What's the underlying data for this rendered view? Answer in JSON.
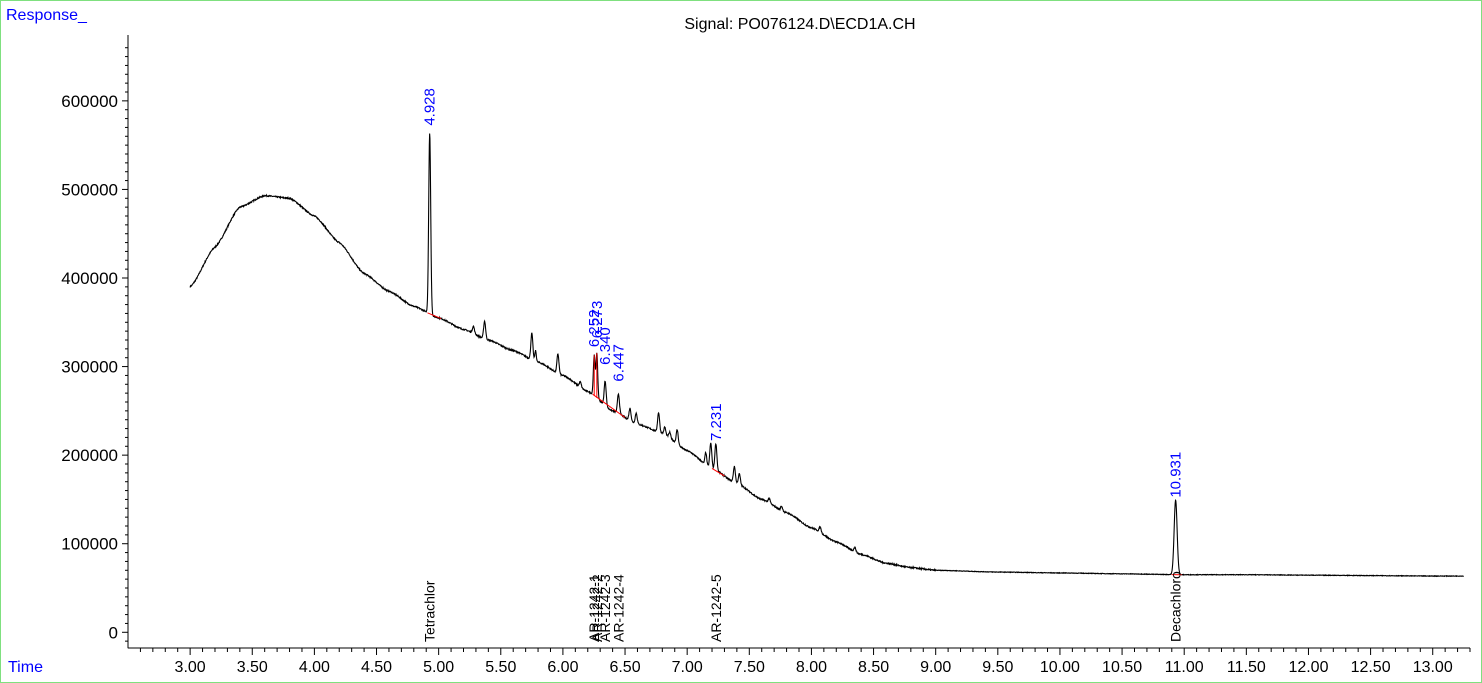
{
  "chart_data": {
    "type": "line",
    "title": "Signal: PO076124.D\\ECD1A.CH",
    "ylabel": "Response_",
    "xlabel": "Time",
    "xlim": [
      2.5,
      13.3
    ],
    "ylim": [
      -20000,
      680000
    ],
    "x_ticks": [
      3.0,
      3.5,
      4.0,
      4.5,
      5.0,
      5.5,
      6.0,
      6.5,
      7.0,
      7.5,
      8.0,
      8.5,
      9.0,
      9.5,
      10.0,
      10.5,
      11.0,
      11.5,
      12.0,
      12.5,
      13.0
    ],
    "x_tick_labels": [
      "3.00",
      "3.50",
      "4.00",
      "4.50",
      "5.00",
      "5.50",
      "6.00",
      "6.50",
      "7.00",
      "7.50",
      "8.00",
      "8.50",
      "9.00",
      "9.50",
      "10.00",
      "10.50",
      "11.00",
      "11.50",
      "12.00",
      "12.50",
      "13.00"
    ],
    "y_ticks": [
      0,
      100000,
      200000,
      300000,
      400000,
      500000,
      600000
    ],
    "y_tick_labels": [
      "0",
      "100000",
      "200000",
      "300000",
      "400000",
      "500000",
      "600000"
    ],
    "grid": false,
    "series_color": "#000000",
    "baseline_color": "#ff0000",
    "peak_label_color": "#0000ff",
    "compound_label_color": "#000000",
    "baseline": [
      [
        3.0,
        390000
      ],
      [
        3.2,
        435000
      ],
      [
        3.4,
        480000
      ],
      [
        3.6,
        493000
      ],
      [
        3.8,
        490000
      ],
      [
        4.0,
        470000
      ],
      [
        4.2,
        440000
      ],
      [
        4.4,
        405000
      ],
      [
        4.6,
        385000
      ],
      [
        4.8,
        368000
      ],
      [
        5.0,
        355000
      ],
      [
        5.2,
        342000
      ],
      [
        5.4,
        330000
      ],
      [
        5.6,
        318000
      ],
      [
        5.8,
        305000
      ],
      [
        6.0,
        290000
      ],
      [
        6.2,
        272000
      ],
      [
        6.4,
        250000
      ],
      [
        6.6,
        235000
      ],
      [
        6.8,
        225000
      ],
      [
        7.0,
        205000
      ],
      [
        7.2,
        185000
      ],
      [
        7.4,
        168000
      ],
      [
        7.6,
        150000
      ],
      [
        7.8,
        135000
      ],
      [
        8.0,
        118000
      ],
      [
        8.2,
        102000
      ],
      [
        8.4,
        88000
      ],
      [
        8.6,
        78000
      ],
      [
        8.8,
        73000
      ],
      [
        9.0,
        70000
      ],
      [
        9.5,
        68000
      ],
      [
        10.0,
        67000
      ],
      [
        10.5,
        66000
      ],
      [
        11.0,
        65000
      ],
      [
        11.5,
        65000
      ],
      [
        12.0,
        64500
      ],
      [
        12.5,
        64000
      ],
      [
        13.0,
        63500
      ],
      [
        13.25,
        63500
      ]
    ],
    "peaks": [
      {
        "t": 4.928,
        "h": 205000,
        "w": 0.008
      },
      {
        "t": 5.28,
        "h": 8000,
        "w": 0.008
      },
      {
        "t": 5.37,
        "h": 20000,
        "w": 0.008
      },
      {
        "t": 5.75,
        "h": 30000,
        "w": 0.008
      },
      {
        "t": 5.78,
        "h": 12000,
        "w": 0.006
      },
      {
        "t": 5.96,
        "h": 22000,
        "w": 0.008
      },
      {
        "t": 6.14,
        "h": 6000,
        "w": 0.008
      },
      {
        "t": 6.252,
        "h": 45000,
        "w": 0.007
      },
      {
        "t": 6.273,
        "h": 50000,
        "w": 0.007
      },
      {
        "t": 6.34,
        "h": 28000,
        "w": 0.008
      },
      {
        "t": 6.447,
        "h": 22000,
        "w": 0.008
      },
      {
        "t": 6.54,
        "h": 14000,
        "w": 0.008
      },
      {
        "t": 6.59,
        "h": 12000,
        "w": 0.008
      },
      {
        "t": 6.77,
        "h": 22000,
        "w": 0.008
      },
      {
        "t": 6.82,
        "h": 8000,
        "w": 0.007
      },
      {
        "t": 6.86,
        "h": 6000,
        "w": 0.007
      },
      {
        "t": 6.92,
        "h": 16000,
        "w": 0.008
      },
      {
        "t": 7.15,
        "h": 14000,
        "w": 0.007
      },
      {
        "t": 7.19,
        "h": 28000,
        "w": 0.008
      },
      {
        "t": 7.231,
        "h": 30000,
        "w": 0.008
      },
      {
        "t": 7.38,
        "h": 18000,
        "w": 0.008
      },
      {
        "t": 7.42,
        "h": 12000,
        "w": 0.008
      },
      {
        "t": 7.66,
        "h": 5000,
        "w": 0.008
      },
      {
        "t": 7.76,
        "h": 5000,
        "w": 0.008
      },
      {
        "t": 8.07,
        "h": 6000,
        "w": 0.008
      },
      {
        "t": 8.35,
        "h": 5000,
        "w": 0.008
      },
      {
        "t": 10.931,
        "h": 84000,
        "w": 0.012
      }
    ],
    "peak_labels": [
      {
        "t": 4.928,
        "label": "4.928",
        "y": 572000
      },
      {
        "t": 6.252,
        "label": "6.252",
        "y": 322000
      },
      {
        "t": 6.273,
        "label": "6.273",
        "y": 332000
      },
      {
        "t": 6.34,
        "label": "6.340",
        "y": 302000
      },
      {
        "t": 6.447,
        "label": "6.447",
        "y": 283000
      },
      {
        "t": 7.231,
        "label": "7.231",
        "y": 216000
      },
      {
        "t": 10.931,
        "label": "10.931",
        "y": 152000
      }
    ],
    "compound_labels": [
      {
        "t": 4.928,
        "label": "Tetrachlor"
      },
      {
        "t": 6.252,
        "label": "AR-1242-1"
      },
      {
        "t": 6.273,
        "label": "AR-1242-2"
      },
      {
        "t": 6.34,
        "label": "AR-1242-3"
      },
      {
        "t": 6.447,
        "label": "AR-1242-4"
      },
      {
        "t": 7.231,
        "label": "AR-1242-5"
      },
      {
        "t": 10.931,
        "label": "Decachloro"
      }
    ]
  }
}
